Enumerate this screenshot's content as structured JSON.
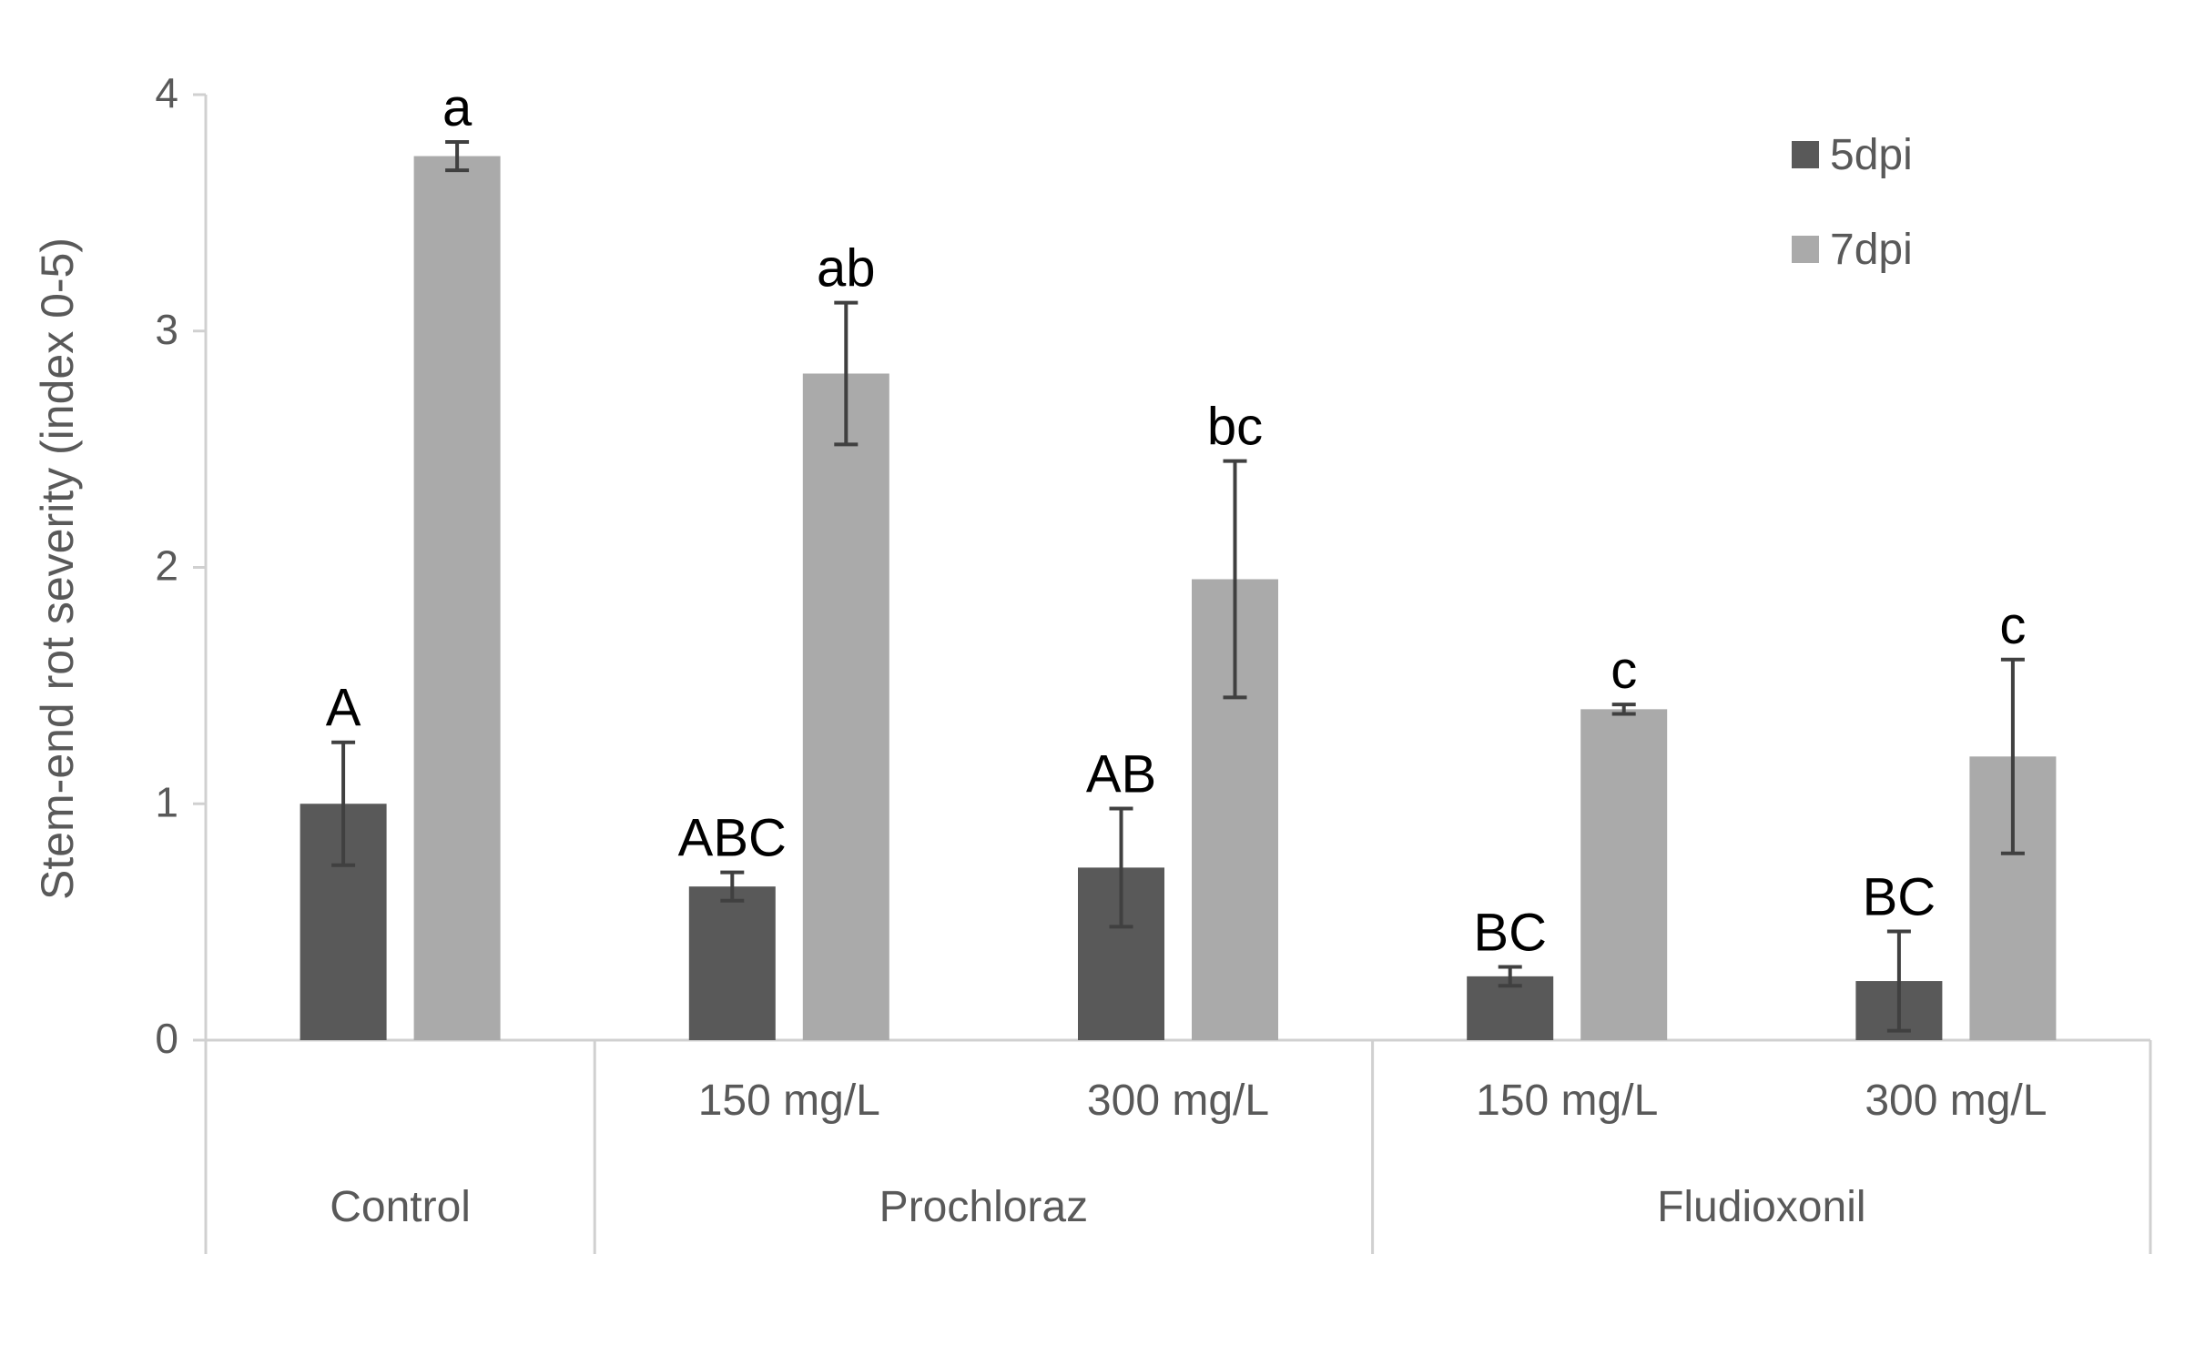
{
  "chart_data": {
    "type": "bar",
    "title": "",
    "xlabel": "",
    "ylabel": "Stem-end rot severity (index 0-5)",
    "ylim": [
      0,
      4
    ],
    "yticks": [
      0,
      1,
      2,
      3,
      4
    ],
    "grid": false,
    "legend_position": "top-right",
    "groups": [
      {
        "label": "Control",
        "span": 1
      },
      {
        "label": "Prochloraz",
        "span": 2
      },
      {
        "label": "Fludioxonil",
        "span": 2
      }
    ],
    "categories": [
      "",
      "150 mg/L",
      "300 mg/L",
      "150 mg/L",
      "300 mg/L"
    ],
    "series": [
      {
        "name": "5dpi",
        "color": "#595959",
        "values": [
          1.0,
          0.65,
          0.73,
          0.27,
          0.25
        ],
        "errors": [
          0.26,
          0.06,
          0.25,
          0.04,
          0.21
        ],
        "letters": [
          "A",
          "ABC",
          "AB",
          "BC",
          "BC"
        ]
      },
      {
        "name": "7dpi",
        "color": "#aaaaaa",
        "values": [
          3.74,
          2.82,
          1.95,
          1.4,
          1.2
        ],
        "errors": [
          0.06,
          0.3,
          0.5,
          0.02,
          0.41
        ],
        "letters": [
          "a",
          "ab",
          "bc",
          "c",
          "c"
        ]
      }
    ]
  }
}
